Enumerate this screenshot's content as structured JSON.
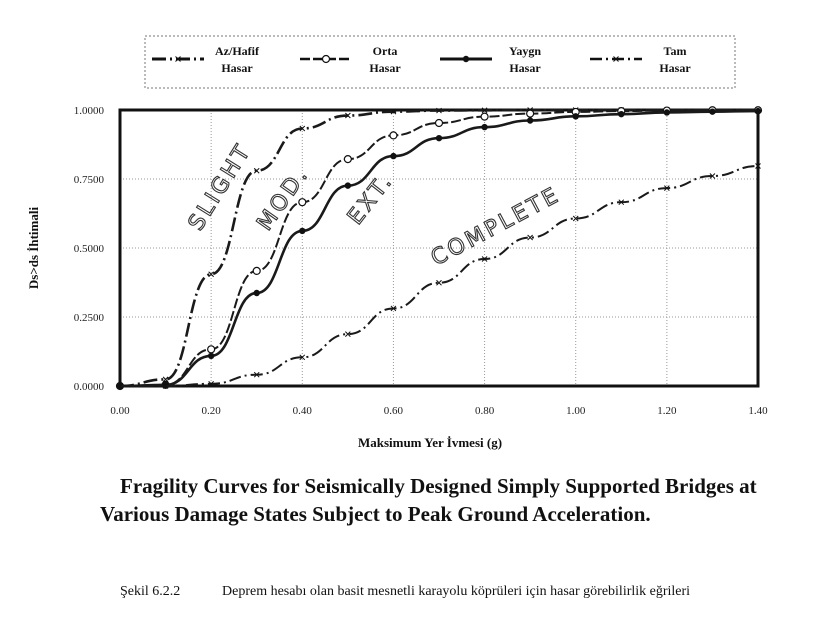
{
  "chart_data": {
    "type": "line",
    "xlabel": "Maksimum Yer İvmesi (g)",
    "ylabel": "Ds>ds İhtimali",
    "xlim": [
      0,
      1.4
    ],
    "ylim": [
      0,
      1
    ],
    "grid": true,
    "legend_placement": "top",
    "x_ticks": [
      "0.00",
      "0.20",
      "0.40",
      "0.60",
      "0.80",
      "1.00",
      "1.20",
      "1.40"
    ],
    "y_ticks": [
      "0.0000",
      "0.2500",
      "0.5000",
      "0.7500",
      "1.0000"
    ],
    "x": [
      0.0,
      0.1,
      0.2,
      0.3,
      0.4,
      0.5,
      0.6,
      0.7,
      0.8,
      0.9,
      1.0,
      1.1,
      1.2,
      1.3,
      1.4
    ],
    "series": [
      {
        "name": "Az/Hafif Hasar",
        "color": "#1a1a1a",
        "values": [
          0,
          0.024,
          0.405,
          0.78,
          0.933,
          0.98,
          0.994,
          0.998,
          0.999,
          1.0,
          1.0,
          1.0,
          1.0,
          1.0,
          1.0
        ]
      },
      {
        "name": "Orta Hasar",
        "color": "#1a1a1a",
        "values": [
          0,
          0.004,
          0.133,
          0.417,
          0.666,
          0.822,
          0.908,
          0.953,
          0.976,
          0.987,
          0.993,
          0.996,
          0.998,
          0.999,
          0.999
        ]
      },
      {
        "name": "Yaygın Hasar",
        "color": "#1a1a1a",
        "values": [
          0,
          0.004,
          0.109,
          0.337,
          0.562,
          0.726,
          0.833,
          0.898,
          0.938,
          0.962,
          0.977,
          0.985,
          0.991,
          0.994,
          0.996
        ]
      },
      {
        "name": "Tam Hasar",
        "color": "#1a1a1a",
        "values": [
          0,
          0.0,
          0.008,
          0.041,
          0.104,
          0.188,
          0.281,
          0.374,
          0.46,
          0.538,
          0.607,
          0.666,
          0.717,
          0.761,
          0.797
        ]
      }
    ],
    "legend": [
      {
        "line1": "Az/Hafif",
        "line2": "Hasar"
      },
      {
        "line1": "Orta",
        "line2": "Hasar"
      },
      {
        "line1": "Yaygn",
        "line2": "Hasar"
      },
      {
        "line1": "Tam",
        "line2": "Hasar"
      }
    ],
    "annotations": [
      "SLIGHT",
      "MOD.",
      "EXT.",
      "COMPLETE"
    ]
  },
  "title": {
    "line1": "Fragility Curves for Seismically Designed Simply Supported Bridges at",
    "line2": "Various Damage States Subject to Peak Ground Acceleration."
  },
  "caption": {
    "label": "Şekil 6.2.2",
    "text": "Deprem hesabı olan basit mesnetli karayolu köprüleri için hasar görebilirlik eğrileri"
  }
}
